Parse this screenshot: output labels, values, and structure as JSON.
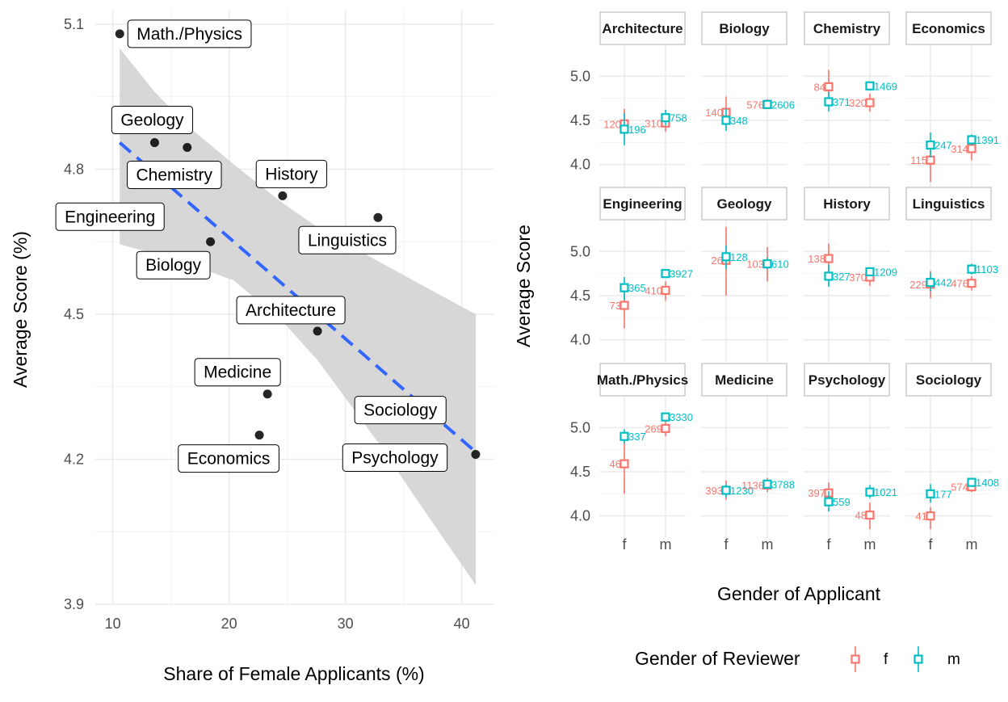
{
  "colors": {
    "f": "#F8766D",
    "m": "#00BFC4",
    "trend": "#3366FF",
    "ribbon": "#D3D3D3",
    "point": "#000000"
  },
  "chart_data": [
    {
      "type": "scatter",
      "title": "",
      "xlabel": "Share of Female Applicants (%)",
      "ylabel": "Average Score (%)",
      "xlim": [
        8.5,
        42.8
      ],
      "ylim": [
        3.9,
        5.13
      ],
      "x_ticks": [
        10,
        20,
        30,
        40
      ],
      "y_ticks": [
        3.9,
        4.2,
        4.5,
        4.8,
        5.1
      ],
      "grid": true,
      "points": [
        {
          "label": "Math./Physics",
          "x": 10.6,
          "y": 5.08
        },
        {
          "label": "Geology",
          "x": 13.6,
          "y": 4.855
        },
        {
          "label": "Chemistry",
          "x": 16.4,
          "y": 4.845
        },
        {
          "label": "History",
          "x": 24.6,
          "y": 4.745
        },
        {
          "label": "Engineering",
          "x": 12.4,
          "y": 4.69
        },
        {
          "label": "Biology",
          "x": 18.4,
          "y": 4.65
        },
        {
          "label": "Linguistics",
          "x": 32.8,
          "y": 4.7
        },
        {
          "label": "Architecture",
          "x": 27.6,
          "y": 4.465
        },
        {
          "label": "Medicine",
          "x": 23.3,
          "y": 4.335
        },
        {
          "label": "Sociology",
          "x": 36.6,
          "y": 4.295
        },
        {
          "label": "Economics",
          "x": 22.6,
          "y": 4.25
        },
        {
          "label": "Psychology",
          "x": 41.2,
          "y": 4.21
        }
      ],
      "trend": {
        "method": "linear",
        "x": [
          10.6,
          41.2
        ],
        "y": [
          4.855,
          4.215
        ]
      },
      "ribbon": {
        "x": [
          10.6,
          13.6,
          16.4,
          20.4,
          24.6,
          27.6,
          32.8,
          36.6,
          41.2
        ],
        "upper": [
          5.05,
          4.96,
          4.89,
          4.81,
          4.73,
          4.68,
          4.61,
          4.56,
          4.5
        ],
        "lower": [
          4.645,
          4.625,
          4.605,
          4.57,
          4.485,
          4.405,
          4.235,
          4.1,
          3.94
        ]
      }
    },
    {
      "type": "faceted-errorbar",
      "title": "",
      "xlabel": "Gender of Applicant",
      "ylabel": "Average Score",
      "ylim": [
        3.75,
        5.35
      ],
      "y_ticks": [
        4.0,
        4.5,
        5.0
      ],
      "categories": [
        "f",
        "m"
      ],
      "grid": true,
      "legend": {
        "title": "Gender of Reviewer",
        "entries": [
          "f",
          "m"
        ],
        "position": "bottom"
      },
      "facets": [
        {
          "name": "Architecture",
          "points": [
            {
              "applicant": "f",
              "reviewer": "f",
              "y": 4.46,
              "lo": 4.3,
              "hi": 4.63,
              "n": "120"
            },
            {
              "applicant": "f",
              "reviewer": "m",
              "y": 4.4,
              "lo": 4.22,
              "hi": 4.58,
              "n": "196"
            },
            {
              "applicant": "m",
              "reviewer": "f",
              "y": 4.47,
              "lo": 4.37,
              "hi": 4.58,
              "n": "310"
            },
            {
              "applicant": "m",
              "reviewer": "m",
              "y": 4.53,
              "lo": 4.44,
              "hi": 4.62,
              "n": "758"
            }
          ]
        },
        {
          "name": "Biology",
          "points": [
            {
              "applicant": "f",
              "reviewer": "f",
              "y": 4.59,
              "lo": 4.42,
              "hi": 4.77,
              "n": "140"
            },
            {
              "applicant": "f",
              "reviewer": "m",
              "y": 4.5,
              "lo": 4.38,
              "hi": 4.63,
              "n": "348"
            },
            {
              "applicant": "m",
              "reviewer": "f",
              "y": 4.68,
              "lo": 4.63,
              "hi": 4.74,
              "n": "576"
            },
            {
              "applicant": "m",
              "reviewer": "m",
              "y": 4.68,
              "lo": 4.64,
              "hi": 4.72,
              "n": "2606"
            }
          ]
        },
        {
          "name": "Chemistry",
          "points": [
            {
              "applicant": "f",
              "reviewer": "f",
              "y": 4.88,
              "lo": 4.7,
              "hi": 5.07,
              "n": "84"
            },
            {
              "applicant": "f",
              "reviewer": "m",
              "y": 4.71,
              "lo": 4.6,
              "hi": 4.82,
              "n": "371"
            },
            {
              "applicant": "m",
              "reviewer": "f",
              "y": 4.7,
              "lo": 4.6,
              "hi": 4.8,
              "n": "320"
            },
            {
              "applicant": "m",
              "reviewer": "m",
              "y": 4.89,
              "lo": 4.85,
              "hi": 4.93,
              "n": "1469"
            }
          ]
        },
        {
          "name": "Economics",
          "points": [
            {
              "applicant": "f",
              "reviewer": "f",
              "y": 4.05,
              "lo": 3.8,
              "hi": 4.2,
              "n": "115"
            },
            {
              "applicant": "f",
              "reviewer": "m",
              "y": 4.22,
              "lo": 4.08,
              "hi": 4.36,
              "n": "247"
            },
            {
              "applicant": "m",
              "reviewer": "f",
              "y": 4.18,
              "lo": 4.05,
              "hi": 4.3,
              "n": "314"
            },
            {
              "applicant": "m",
              "reviewer": "m",
              "y": 4.28,
              "lo": 4.22,
              "hi": 4.34,
              "n": "1391"
            }
          ]
        },
        {
          "name": "Engineering",
          "points": [
            {
              "applicant": "f",
              "reviewer": "f",
              "y": 4.39,
              "lo": 4.13,
              "hi": 4.58,
              "n": "73"
            },
            {
              "applicant": "f",
              "reviewer": "m",
              "y": 4.59,
              "lo": 4.45,
              "hi": 4.71,
              "n": "365"
            },
            {
              "applicant": "m",
              "reviewer": "f",
              "y": 4.56,
              "lo": 4.44,
              "hi": 4.66,
              "n": "410"
            },
            {
              "applicant": "m",
              "reviewer": "m",
              "y": 4.75,
              "lo": 4.71,
              "hi": 4.8,
              "n": "3927"
            }
          ]
        },
        {
          "name": "Geology",
          "points": [
            {
              "applicant": "f",
              "reviewer": "f",
              "y": 4.9,
              "lo": 4.5,
              "hi": 5.28,
              "n": "26"
            },
            {
              "applicant": "f",
              "reviewer": "m",
              "y": 4.94,
              "lo": 4.8,
              "hi": 5.07,
              "n": "128"
            },
            {
              "applicant": "m",
              "reviewer": "f",
              "y": 4.86,
              "lo": 4.66,
              "hi": 5.05,
              "n": "103"
            },
            {
              "applicant": "m",
              "reviewer": "m",
              "y": 4.86,
              "lo": 4.8,
              "hi": 4.93,
              "n": "610"
            }
          ]
        },
        {
          "name": "History",
          "points": [
            {
              "applicant": "f",
              "reviewer": "f",
              "y": 4.92,
              "lo": 4.75,
              "hi": 5.09,
              "n": "138"
            },
            {
              "applicant": "f",
              "reviewer": "m",
              "y": 4.72,
              "lo": 4.6,
              "hi": 4.85,
              "n": "327"
            },
            {
              "applicant": "m",
              "reviewer": "f",
              "y": 4.71,
              "lo": 4.61,
              "hi": 4.8,
              "n": "370"
            },
            {
              "applicant": "m",
              "reviewer": "m",
              "y": 4.77,
              "lo": 4.72,
              "hi": 4.82,
              "n": "1209"
            }
          ]
        },
        {
          "name": "Linguistics",
          "points": [
            {
              "applicant": "f",
              "reviewer": "f",
              "y": 4.63,
              "lo": 4.47,
              "hi": 4.78,
              "n": "229"
            },
            {
              "applicant": "f",
              "reviewer": "m",
              "y": 4.65,
              "lo": 4.55,
              "hi": 4.76,
              "n": "442"
            },
            {
              "applicant": "m",
              "reviewer": "f",
              "y": 4.64,
              "lo": 4.56,
              "hi": 4.72,
              "n": "476"
            },
            {
              "applicant": "m",
              "reviewer": "m",
              "y": 4.8,
              "lo": 4.74,
              "hi": 4.86,
              "n": "1103"
            }
          ]
        },
        {
          "name": "Math./Physics",
          "points": [
            {
              "applicant": "f",
              "reviewer": "f",
              "y": 4.59,
              "lo": 4.25,
              "hi": 4.92,
              "n": "46"
            },
            {
              "applicant": "f",
              "reviewer": "m",
              "y": 4.9,
              "lo": 4.82,
              "hi": 4.98,
              "n": "337"
            },
            {
              "applicant": "m",
              "reviewer": "f",
              "y": 4.99,
              "lo": 4.9,
              "hi": 5.08,
              "n": "269"
            },
            {
              "applicant": "m",
              "reviewer": "m",
              "y": 5.12,
              "lo": 5.1,
              "hi": 5.14,
              "n": "3330"
            }
          ]
        },
        {
          "name": "Medicine",
          "points": [
            {
              "applicant": "f",
              "reviewer": "f",
              "y": 4.29,
              "lo": 4.18,
              "hi": 4.4,
              "n": "393"
            },
            {
              "applicant": "f",
              "reviewer": "m",
              "y": 4.29,
              "lo": 4.21,
              "hi": 4.36,
              "n": "1230"
            },
            {
              "applicant": "m",
              "reviewer": "f",
              "y": 4.35,
              "lo": 4.27,
              "hi": 4.43,
              "n": "1136"
            },
            {
              "applicant": "m",
              "reviewer": "m",
              "y": 4.36,
              "lo": 4.32,
              "hi": 4.4,
              "n": "3788"
            }
          ]
        },
        {
          "name": "Psychology",
          "points": [
            {
              "applicant": "f",
              "reviewer": "f",
              "y": 4.26,
              "lo": 4.14,
              "hi": 4.38,
              "n": "397"
            },
            {
              "applicant": "f",
              "reviewer": "m",
              "y": 4.16,
              "lo": 4.05,
              "hi": 4.28,
              "n": "559"
            },
            {
              "applicant": "m",
              "reviewer": "f",
              "y": 4.01,
              "lo": 3.85,
              "hi": 4.15,
              "n": "48"
            },
            {
              "applicant": "m",
              "reviewer": "m",
              "y": 4.27,
              "lo": 4.2,
              "hi": 4.35,
              "n": "1021"
            }
          ]
        },
        {
          "name": "Sociology",
          "points": [
            {
              "applicant": "f",
              "reviewer": "f",
              "y": 4.0,
              "lo": 3.85,
              "hi": 4.1,
              "n": "41"
            },
            {
              "applicant": "f",
              "reviewer": "m",
              "y": 4.25,
              "lo": 4.15,
              "hi": 4.36,
              "n": "177"
            },
            {
              "applicant": "m",
              "reviewer": "f",
              "y": 4.33,
              "lo": 4.27,
              "hi": 4.4,
              "n": "574"
            },
            {
              "applicant": "m",
              "reviewer": "m",
              "y": 4.38,
              "lo": 4.33,
              "hi": 4.43,
              "n": "1408"
            }
          ]
        }
      ]
    }
  ]
}
